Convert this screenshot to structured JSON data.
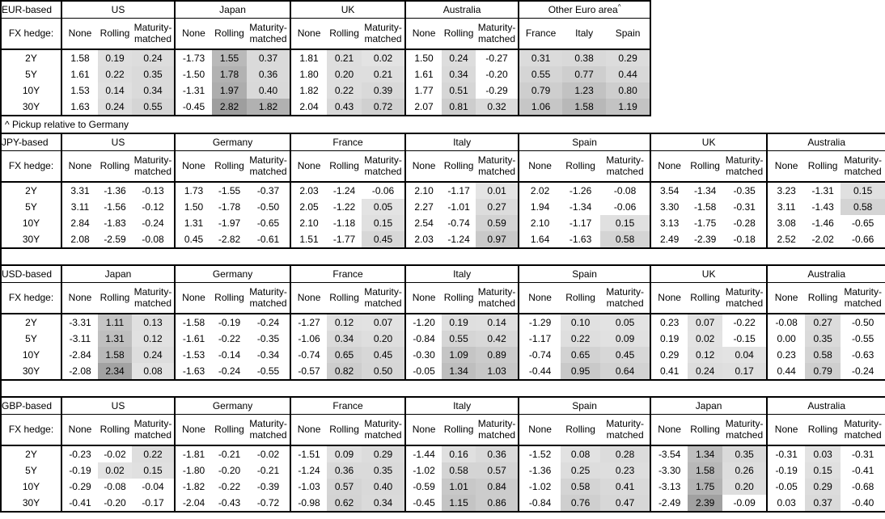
{
  "footnote": "^ Pickup relative to Germany",
  "colors": {
    "border": "#000000",
    "cell_shade_min": "#e4e4e4",
    "cell_shade_max": "#9e9e9e"
  },
  "chart_data": [
    {
      "type": "table",
      "id": "eur",
      "title": "EUR-based",
      "row_header": "FX hedge:",
      "row_labels": [
        "2Y",
        "5Y",
        "10Y",
        "30Y"
      ],
      "groups": [
        {
          "name": "US",
          "cols": [
            "None",
            "Rolling",
            "Maturity-matched"
          ],
          "rows": [
            [
              "1.58",
              "0.19",
              "0.24"
            ],
            [
              "1.61",
              "0.22",
              "0.35"
            ],
            [
              "1.53",
              "0.14",
              "0.34"
            ],
            [
              "1.63",
              "0.24",
              "0.55"
            ]
          ]
        },
        {
          "name": "Japan",
          "cols": [
            "None",
            "Rolling",
            "Maturity-matched"
          ],
          "rows": [
            [
              "-1.73",
              "1.55",
              "0.37"
            ],
            [
              "-1.50",
              "1.78",
              "0.36"
            ],
            [
              "-1.31",
              "1.97",
              "0.40"
            ],
            [
              "-0.45",
              "2.82",
              "1.82"
            ]
          ]
        },
        {
          "name": "UK",
          "cols": [
            "None",
            "Rolling",
            "Maturity-matched"
          ],
          "rows": [
            [
              "1.81",
              "0.21",
              "0.02"
            ],
            [
              "1.80",
              "0.20",
              "0.21"
            ],
            [
              "1.82",
              "0.22",
              "0.39"
            ],
            [
              "2.04",
              "0.43",
              "0.72"
            ]
          ]
        },
        {
          "name": "Australia",
          "cols": [
            "None",
            "Rolling",
            "Maturity-matched"
          ],
          "rows": [
            [
              "1.50",
              "0.24",
              "-0.27"
            ],
            [
              "1.61",
              "0.34",
              "-0.20"
            ],
            [
              "1.77",
              "0.51",
              "-0.29"
            ],
            [
              "2.07",
              "0.81",
              "0.32"
            ]
          ]
        },
        {
          "name": "Other Euro area",
          "sup": "^",
          "equal_cols": true,
          "cols": [
            "France",
            "Italy",
            "Spain"
          ],
          "rows": [
            [
              "0.31",
              "0.38",
              "0.29"
            ],
            [
              "0.55",
              "0.77",
              "0.44"
            ],
            [
              "0.79",
              "1.23",
              "0.80"
            ],
            [
              "1.06",
              "1.58",
              "1.19"
            ]
          ]
        }
      ]
    },
    {
      "type": "table",
      "id": "jpy",
      "title": "JPY-based",
      "row_header": "FX hedge:",
      "row_labels": [
        "2Y",
        "5Y",
        "10Y",
        "30Y"
      ],
      "groups": [
        {
          "name": "US",
          "cols": [
            "None",
            "Rolling",
            "Maturity-matched"
          ],
          "rows": [
            [
              "3.31",
              "-1.36",
              "-0.13"
            ],
            [
              "3.11",
              "-1.56",
              "-0.12"
            ],
            [
              "2.84",
              "-1.83",
              "-0.24"
            ],
            [
              "2.08",
              "-2.59",
              "-0.08"
            ]
          ]
        },
        {
          "name": "Germany",
          "cols": [
            "None",
            "Rolling",
            "Maturity-matched"
          ],
          "rows": [
            [
              "1.73",
              "-1.55",
              "-0.37"
            ],
            [
              "1.50",
              "-1.78",
              "-0.50"
            ],
            [
              "1.31",
              "-1.97",
              "-0.65"
            ],
            [
              "0.45",
              "-2.82",
              "-0.61"
            ]
          ]
        },
        {
          "name": "France",
          "cols": [
            "None",
            "Rolling",
            "Maturity-matched"
          ],
          "rows": [
            [
              "2.03",
              "-1.24",
              "-0.06"
            ],
            [
              "2.05",
              "-1.22",
              "0.05"
            ],
            [
              "2.10",
              "-1.18",
              "0.15"
            ],
            [
              "1.51",
              "-1.77",
              "0.45"
            ]
          ]
        },
        {
          "name": "Italy",
          "cols": [
            "None",
            "Rolling",
            "Maturity-matched"
          ],
          "rows": [
            [
              "2.10",
              "-1.17",
              "0.01"
            ],
            [
              "2.27",
              "-1.01",
              "0.27"
            ],
            [
              "2.54",
              "-0.74",
              "0.59"
            ],
            [
              "2.03",
              "-1.24",
              "0.97"
            ]
          ]
        },
        {
          "name": "Spain",
          "cols": [
            "None",
            "Rolling",
            "Maturity-matched"
          ],
          "rows": [
            [
              "2.02",
              "-1.26",
              "-0.08"
            ],
            [
              "1.94",
              "-1.34",
              "-0.06"
            ],
            [
              "2.10",
              "-1.17",
              "0.15"
            ],
            [
              "1.64",
              "-1.63",
              "0.58"
            ]
          ]
        },
        {
          "name": "UK",
          "cols": [
            "None",
            "Rolling",
            "Maturity-matched"
          ],
          "rows": [
            [
              "3.54",
              "-1.34",
              "-0.35"
            ],
            [
              "3.30",
              "-1.58",
              "-0.31"
            ],
            [
              "3.13",
              "-1.75",
              "-0.28"
            ],
            [
              "2.49",
              "-2.39",
              "-0.18"
            ]
          ]
        },
        {
          "name": "Australia",
          "cols": [
            "None",
            "Rolling",
            "Maturity-matched"
          ],
          "rows": [
            [
              "3.23",
              "-1.31",
              "0.15"
            ],
            [
              "3.11",
              "-1.43",
              "0.58"
            ],
            [
              "3.08",
              "-1.46",
              "-0.65"
            ],
            [
              "2.52",
              "-2.02",
              "-0.66"
            ]
          ]
        }
      ]
    },
    {
      "type": "table",
      "id": "usd",
      "title": "USD-based",
      "row_header": "FX hedge:",
      "row_labels": [
        "2Y",
        "5Y",
        "10Y",
        "30Y"
      ],
      "groups": [
        {
          "name": "Japan",
          "cols": [
            "None",
            "Rolling",
            "Maturity-matched"
          ],
          "rows": [
            [
              "-3.31",
              "1.11",
              "0.13"
            ],
            [
              "-3.11",
              "1.31",
              "0.12"
            ],
            [
              "-2.84",
              "1.58",
              "0.24"
            ],
            [
              "-2.08",
              "2.34",
              "0.08"
            ]
          ]
        },
        {
          "name": "Germany",
          "cols": [
            "None",
            "Rolling",
            "Maturity-matched"
          ],
          "rows": [
            [
              "-1.58",
              "-0.19",
              "-0.24"
            ],
            [
              "-1.61",
              "-0.22",
              "-0.35"
            ],
            [
              "-1.53",
              "-0.14",
              "-0.34"
            ],
            [
              "-1.63",
              "-0.24",
              "-0.55"
            ]
          ]
        },
        {
          "name": "France",
          "cols": [
            "None",
            "Rolling",
            "Maturity-matched"
          ],
          "rows": [
            [
              "-1.27",
              "0.12",
              "0.07"
            ],
            [
              "-1.06",
              "0.34",
              "0.20"
            ],
            [
              "-0.74",
              "0.65",
              "0.45"
            ],
            [
              "-0.57",
              "0.82",
              "0.50"
            ]
          ]
        },
        {
          "name": "Italy",
          "cols": [
            "None",
            "Rolling",
            "Maturity-matched"
          ],
          "rows": [
            [
              "-1.20",
              "0.19",
              "0.14"
            ],
            [
              "-0.84",
              "0.55",
              "0.42"
            ],
            [
              "-0.30",
              "1.09",
              "0.89"
            ],
            [
              "-0.05",
              "1.34",
              "1.03"
            ]
          ]
        },
        {
          "name": "Spain",
          "cols": [
            "None",
            "Rolling",
            "Maturity-matched"
          ],
          "rows": [
            [
              "-1.29",
              "0.10",
              "0.05"
            ],
            [
              "-1.17",
              "0.22",
              "0.09"
            ],
            [
              "-0.74",
              "0.65",
              "0.45"
            ],
            [
              "-0.44",
              "0.95",
              "0.64"
            ]
          ]
        },
        {
          "name": "UK",
          "cols": [
            "None",
            "Rolling",
            "Maturity-matched"
          ],
          "rows": [
            [
              "0.23",
              "0.07",
              "-0.22"
            ],
            [
              "0.19",
              "0.02",
              "-0.15"
            ],
            [
              "0.29",
              "0.12",
              "0.04"
            ],
            [
              "0.41",
              "0.24",
              "0.17"
            ]
          ]
        },
        {
          "name": "Australia",
          "cols": [
            "None",
            "Rolling",
            "Maturity-matched"
          ],
          "rows": [
            [
              "-0.08",
              "0.27",
              "-0.50"
            ],
            [
              "0.00",
              "0.35",
              "-0.55"
            ],
            [
              "0.23",
              "0.58",
              "-0.63"
            ],
            [
              "0.44",
              "0.79",
              "-0.24"
            ]
          ]
        }
      ]
    },
    {
      "type": "table",
      "id": "gbp",
      "title": "GBP-based",
      "row_header": "FX hedge:",
      "row_labels": [
        "2Y",
        "5Y",
        "10Y",
        "30Y"
      ],
      "groups": [
        {
          "name": "US",
          "cols": [
            "None",
            "Rolling",
            "Maturity-matched"
          ],
          "rows": [
            [
              "-0.23",
              "-0.02",
              "0.22"
            ],
            [
              "-0.19",
              "0.02",
              "0.15"
            ],
            [
              "-0.29",
              "-0.08",
              "-0.04"
            ],
            [
              "-0.41",
              "-0.20",
              "-0.17"
            ]
          ]
        },
        {
          "name": "Germany",
          "cols": [
            "None",
            "Rolling",
            "Maturity-matched"
          ],
          "rows": [
            [
              "-1.81",
              "-0.21",
              "-0.02"
            ],
            [
              "-1.80",
              "-0.20",
              "-0.21"
            ],
            [
              "-1.82",
              "-0.22",
              "-0.39"
            ],
            [
              "-2.04",
              "-0.43",
              "-0.72"
            ]
          ]
        },
        {
          "name": "France",
          "cols": [
            "None",
            "Rolling",
            "Maturity-matched"
          ],
          "rows": [
            [
              "-1.51",
              "0.09",
              "0.29"
            ],
            [
              "-1.24",
              "0.36",
              "0.35"
            ],
            [
              "-1.03",
              "0.57",
              "0.40"
            ],
            [
              "-0.98",
              "0.62",
              "0.34"
            ]
          ]
        },
        {
          "name": "Italy",
          "cols": [
            "None",
            "Rolling",
            "Maturity-matched"
          ],
          "rows": [
            [
              "-1.44",
              "0.16",
              "0.36"
            ],
            [
              "-1.02",
              "0.58",
              "0.57"
            ],
            [
              "-0.59",
              "1.01",
              "0.84"
            ],
            [
              "-0.45",
              "1.15",
              "0.86"
            ]
          ]
        },
        {
          "name": "Spain",
          "cols": [
            "None",
            "Rolling",
            "Maturity-matched"
          ],
          "rows": [
            [
              "-1.52",
              "0.08",
              "0.28"
            ],
            [
              "-1.36",
              "0.25",
              "0.23"
            ],
            [
              "-1.02",
              "0.58",
              "0.41"
            ],
            [
              "-0.84",
              "0.76",
              "0.47"
            ]
          ]
        },
        {
          "name": "Japan",
          "cols": [
            "None",
            "Rolling",
            "Maturity-matched"
          ],
          "rows": [
            [
              "-3.54",
              "1.34",
              "0.35"
            ],
            [
              "-3.30",
              "1.58",
              "0.26"
            ],
            [
              "-3.13",
              "1.75",
              "0.20"
            ],
            [
              "-2.49",
              "2.39",
              "-0.09"
            ]
          ]
        },
        {
          "name": "Australia",
          "cols": [
            "None",
            "Rolling",
            "Maturity-matched"
          ],
          "rows": [
            [
              "-0.31",
              "0.03",
              "-0.31"
            ],
            [
              "-0.19",
              "0.15",
              "-0.41"
            ],
            [
              "-0.05",
              "0.29",
              "-0.68"
            ],
            [
              "0.03",
              "0.37",
              "-0.40"
            ]
          ]
        }
      ]
    }
  ]
}
